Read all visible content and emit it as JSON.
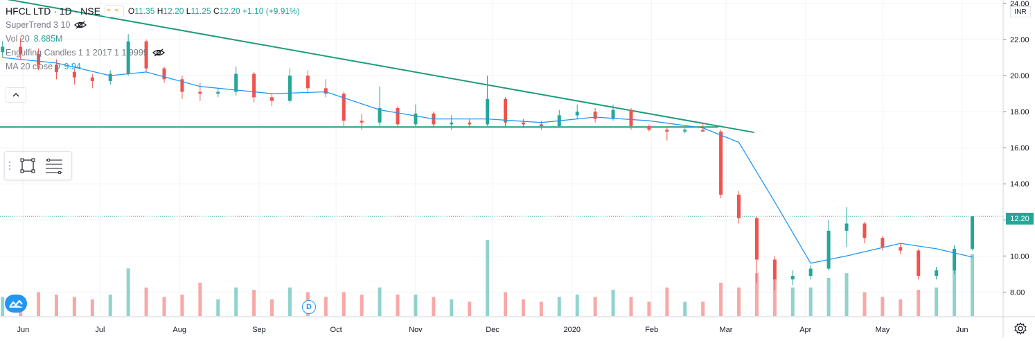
{
  "header": {
    "symbol_title": "HFCL LTD · 1D · NSE",
    "ohlc": {
      "o_label": "O",
      "o": "11.35",
      "h_label": "H",
      "h": "12.20",
      "l_label": "L",
      "l": "11.25",
      "c_label": "C",
      "c": "12.20",
      "change": "+1.10 (+9.91%)"
    }
  },
  "indicators": {
    "supertrend": "SuperTrend 3 10",
    "vol_label": "Vol 20",
    "vol_value": "8.685M",
    "engulfing": "Engulfing Candles 1 1 2017 1 1 9999",
    "ma_label": "MA 20 close 0",
    "ma_value": "9.94"
  },
  "price_axis": {
    "currency": "INR",
    "ticks": [
      "24.00",
      "22.00",
      "20.00",
      "18.00",
      "16.00",
      "14.00",
      "12.00",
      "10.00",
      "8.00"
    ],
    "last_price": "12.20"
  },
  "time_axis": {
    "labels": [
      "Jun",
      "Jul",
      "Aug",
      "Sep",
      "Oct",
      "Nov",
      "Dec",
      "2020",
      "Feb",
      "Mar",
      "Apr",
      "May",
      "Jun"
    ]
  },
  "badges": {
    "dividend": "D"
  },
  "colors": {
    "up": "#26a69a",
    "down": "#ef5350",
    "ma": "#2196f3",
    "trendline": "#1e9c7a",
    "grid": "#f0f3fa"
  },
  "icons": [
    "eye-off-icon",
    "rectangle-tool-icon",
    "fib-lines-tool-icon",
    "chevron-up-icon",
    "tradingview-logo-icon",
    "gear-icon"
  ],
  "chart_data": {
    "type": "candlestick",
    "title": "HFCL LTD · 1D · NSE",
    "ylim": [
      7.2,
      24.0
    ],
    "x_range": [
      "2019-05-23",
      "2020-06-10"
    ],
    "trendlines": [
      {
        "kind": "descending resistance",
        "from": [
          "2019-05-23",
          24.3
        ],
        "to": [
          "2020-03-12",
          16.85
        ]
      },
      {
        "kind": "horizontal support",
        "from": [
          "2019-05-23",
          17.15
        ],
        "to": [
          "2020-02-27",
          17.15
        ]
      }
    ],
    "last_close": 12.2,
    "ma20_last": 9.94,
    "candles": [
      [
        2019,
        5,
        24,
        21.3,
        21.9,
        21.0,
        21.6,
        0.4
      ],
      [
        2019,
        5,
        31,
        21.6,
        22.1,
        20.9,
        21.2,
        0.4
      ],
      [
        2019,
        6,
        7,
        21.2,
        21.5,
        20.3,
        20.6,
        0.5
      ],
      [
        2019,
        6,
        14,
        20.6,
        20.9,
        19.8,
        20.2,
        0.45
      ],
      [
        2019,
        6,
        21,
        20.2,
        20.4,
        19.5,
        19.9,
        0.4
      ],
      [
        2019,
        6,
        28,
        19.9,
        20.1,
        19.3,
        19.7,
        0.35
      ],
      [
        2019,
        7,
        5,
        19.7,
        20.3,
        19.5,
        20.1,
        0.45
      ],
      [
        2019,
        7,
        12,
        20.1,
        22.3,
        20.0,
        21.9,
        1.0
      ],
      [
        2019,
        7,
        19,
        21.9,
        22.0,
        20.2,
        20.4,
        0.6
      ],
      [
        2019,
        7,
        26,
        20.4,
        20.5,
        19.6,
        19.8,
        0.4
      ],
      [
        2019,
        8,
        2,
        19.8,
        20.0,
        18.7,
        19.1,
        0.45
      ],
      [
        2019,
        8,
        9,
        19.1,
        19.6,
        18.6,
        19.0,
        0.7
      ],
      [
        2019,
        8,
        16,
        19.0,
        19.3,
        18.8,
        19.1,
        0.35
      ],
      [
        2019,
        8,
        23,
        19.1,
        20.5,
        18.9,
        20.1,
        0.6
      ],
      [
        2019,
        8,
        30,
        20.1,
        20.2,
        18.5,
        18.8,
        0.55
      ],
      [
        2019,
        9,
        6,
        18.8,
        19.0,
        18.3,
        18.6,
        0.35
      ],
      [
        2019,
        9,
        13,
        18.6,
        20.4,
        18.5,
        20.0,
        0.6
      ],
      [
        2019,
        9,
        20,
        20.0,
        20.3,
        19.0,
        19.3,
        0.5
      ],
      [
        2019,
        9,
        27,
        19.3,
        19.8,
        18.8,
        19.0,
        0.4
      ],
      [
        2019,
        10,
        4,
        19.0,
        19.1,
        17.2,
        17.5,
        0.5
      ],
      [
        2019,
        10,
        11,
        17.5,
        17.9,
        17.0,
        17.4,
        0.45
      ],
      [
        2019,
        10,
        18,
        17.4,
        19.4,
        17.2,
        18.2,
        0.6
      ],
      [
        2019,
        10,
        25,
        18.2,
        18.3,
        17.1,
        17.3,
        0.45
      ],
      [
        2019,
        11,
        1,
        17.3,
        18.4,
        17.2,
        17.9,
        0.45
      ],
      [
        2019,
        11,
        8,
        17.9,
        18.0,
        17.1,
        17.3,
        0.4
      ],
      [
        2019,
        11,
        15,
        17.3,
        17.8,
        17.0,
        17.4,
        0.35
      ],
      [
        2019,
        11,
        22,
        17.4,
        17.6,
        17.1,
        17.3,
        0.3
      ],
      [
        2019,
        11,
        29,
        17.3,
        20.0,
        17.2,
        18.7,
        1.6
      ],
      [
        2019,
        12,
        6,
        18.7,
        18.8,
        17.1,
        17.4,
        0.5
      ],
      [
        2019,
        12,
        13,
        17.4,
        17.6,
        17.1,
        17.3,
        0.35
      ],
      [
        2019,
        12,
        20,
        17.3,
        17.5,
        17.0,
        17.2,
        0.3
      ],
      [
        2019,
        12,
        27,
        17.2,
        18.1,
        17.1,
        17.8,
        0.4
      ],
      [
        2020,
        1,
        3,
        17.8,
        18.4,
        17.6,
        18.0,
        0.45
      ],
      [
        2020,
        1,
        10,
        18.0,
        18.2,
        17.4,
        17.6,
        0.4
      ],
      [
        2020,
        1,
        17,
        17.6,
        18.4,
        17.5,
        18.1,
        0.55
      ],
      [
        2020,
        1,
        24,
        18.1,
        18.2,
        17.0,
        17.2,
        0.4
      ],
      [
        2020,
        1,
        31,
        17.2,
        17.3,
        16.9,
        17.0,
        0.3
      ],
      [
        2020,
        2,
        7,
        17.0,
        17.1,
        16.4,
        16.9,
        0.6
      ],
      [
        2020,
        2,
        14,
        16.9,
        17.1,
        16.8,
        17.0,
        0.3
      ],
      [
        2020,
        2,
        21,
        17.0,
        17.4,
        16.9,
        16.9,
        0.3
      ],
      [
        2020,
        2,
        28,
        16.9,
        17.0,
        13.2,
        13.4,
        0.7
      ],
      [
        2020,
        3,
        6,
        13.4,
        13.6,
        11.8,
        12.1,
        0.6
      ],
      [
        2020,
        3,
        13,
        12.1,
        12.2,
        8.5,
        9.8,
        0.9
      ],
      [
        2020,
        3,
        20,
        9.8,
        10.0,
        8.1,
        8.7,
        0.8
      ],
      [
        2020,
        3,
        27,
        8.7,
        9.2,
        8.4,
        8.9,
        0.6
      ],
      [
        2020,
        4,
        3,
        8.9,
        9.5,
        8.7,
        9.3,
        0.6
      ],
      [
        2020,
        4,
        10,
        9.3,
        12.0,
        9.2,
        11.4,
        0.8
      ],
      [
        2020,
        4,
        17,
        11.4,
        12.7,
        10.5,
        11.8,
        0.9
      ],
      [
        2020,
        4,
        24,
        11.8,
        11.9,
        10.7,
        11.0,
        0.5
      ],
      [
        2020,
        5,
        1,
        11.0,
        11.1,
        10.3,
        10.5,
        0.4
      ],
      [
        2020,
        5,
        8,
        10.5,
        10.7,
        10.1,
        10.3,
        0.35
      ],
      [
        2020,
        5,
        15,
        10.3,
        10.4,
        8.7,
        8.9,
        0.55
      ],
      [
        2020,
        5,
        22,
        8.9,
        9.4,
        8.7,
        9.2,
        0.6
      ],
      [
        2020,
        5,
        29,
        9.2,
        10.6,
        9.0,
        10.4,
        1.1
      ],
      [
        2020,
        6,
        5,
        10.4,
        12.2,
        10.3,
        12.2,
        1.3
      ]
    ],
    "ma20": [
      [
        2019,
        5,
        24,
        21.0
      ],
      [
        2019,
        6,
        14,
        20.7
      ],
      [
        2019,
        7,
        5,
        20.0
      ],
      [
        2019,
        7,
        19,
        20.2
      ],
      [
        2019,
        8,
        9,
        19.4
      ],
      [
        2019,
        9,
        6,
        19.0
      ],
      [
        2019,
        9,
        27,
        19.1
      ],
      [
        2019,
        10,
        18,
        18.1
      ],
      [
        2019,
        11,
        8,
        17.6
      ],
      [
        2019,
        11,
        29,
        17.6
      ],
      [
        2019,
        12,
        20,
        17.4
      ],
      [
        2020,
        1,
        10,
        17.7
      ],
      [
        2020,
        1,
        31,
        17.5
      ],
      [
        2020,
        2,
        21,
        17.1
      ],
      [
        2020,
        3,
        6,
        16.3
      ],
      [
        2020,
        3,
        20,
        13.0
      ],
      [
        2020,
        4,
        3,
        9.6
      ],
      [
        2020,
        4,
        17,
        10.0
      ],
      [
        2020,
        5,
        8,
        10.7
      ],
      [
        2020,
        5,
        22,
        10.4
      ],
      [
        2020,
        6,
        5,
        9.94
      ]
    ]
  }
}
